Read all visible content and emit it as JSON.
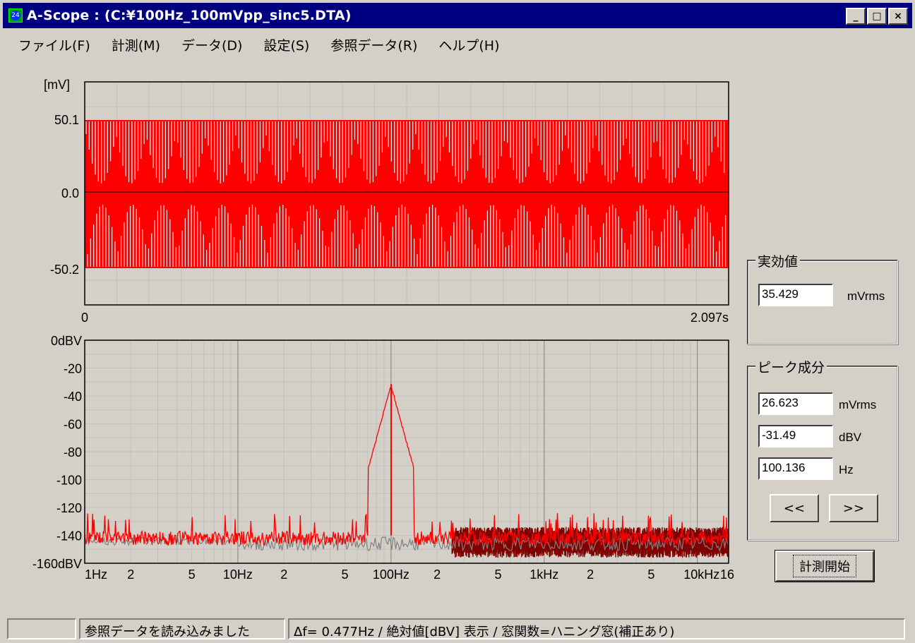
{
  "window": {
    "icon_label": "24",
    "title": "A-Scope : (C:¥100Hz_100mVpp_sinc5.DTA)",
    "minimize": "_",
    "maximize": "□",
    "close": "×"
  },
  "menu": [
    "ファイル(F)",
    "計測(M)",
    "データ(D)",
    "設定(S)",
    "参照データ(R)",
    "ヘルプ(H)"
  ],
  "waveform": {
    "unit_label": "[mV]",
    "y_ticks": [
      "50.1",
      "0.0",
      "-50.2"
    ],
    "x_start": "0",
    "x_end": "2.097s",
    "trace_color": "#ff0000"
  },
  "spectrum": {
    "y_ticks": [
      "0dBV",
      "-20",
      "-40",
      "-60",
      "-80",
      "-100",
      "-120",
      "-140",
      "-160dBV"
    ],
    "x_ticks": [
      "1Hz",
      "2",
      "5",
      "10Hz",
      "2",
      "5",
      "100Hz",
      "2",
      "5",
      "1kHz",
      "2",
      "5",
      "10kHz",
      "16"
    ],
    "trace_color": "#ff0000",
    "reference_color": "#808080",
    "dark_color": "#800000"
  },
  "rms_group": {
    "title": "実効値",
    "value": "35.429",
    "unit": "mVrms"
  },
  "peak_group": {
    "title": "ピーク成分",
    "rms_value": "26.623",
    "rms_unit": "mVrms",
    "dbv_value": "-31.49",
    "dbv_unit": "dBV",
    "freq_value": "100.136",
    "freq_unit": "Hz",
    "prev_button": "<<",
    "next_button": ">>"
  },
  "start_button": "計測開始",
  "statusbar": {
    "pane1": "",
    "pane2": "参照データを読み込みました",
    "pane3": "Δf= 0.477Hz / 絶対値[dBV] 表示 / 窓関数=ハニング窓(補正あり)"
  }
}
